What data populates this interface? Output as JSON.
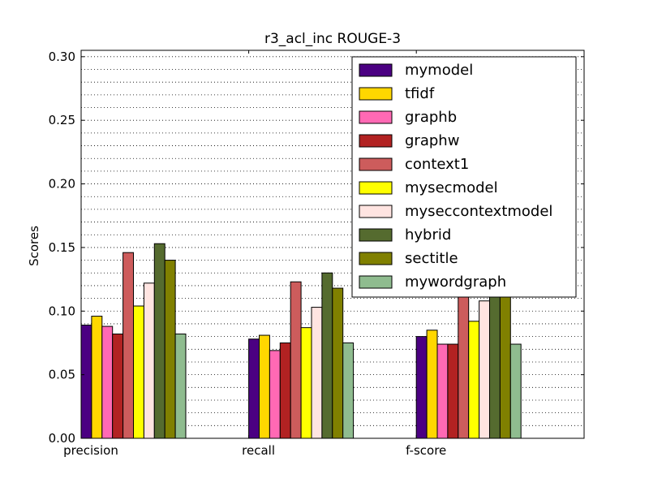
{
  "chart_data": {
    "type": "bar",
    "title": "r3_acl_inc ROUGE-3",
    "xlabel": "",
    "ylabel": "Scores",
    "ylim": [
      0,
      0.305
    ],
    "yticks": [
      "0.00",
      "0.05",
      "0.10",
      "0.15",
      "0.20",
      "0.25",
      "0.30"
    ],
    "ytick_values": [
      0,
      0.05,
      0.1,
      0.15,
      0.2,
      0.25,
      0.3
    ],
    "minor_grid_step": 0.01,
    "grid": true,
    "legend_position": "top-right",
    "categories": [
      "precision",
      "recall",
      "f-score"
    ],
    "series": [
      {
        "name": "mymodel",
        "color": "#4b0082",
        "values": [
          0.089,
          0.078,
          0.08
        ]
      },
      {
        "name": "tfidf",
        "color": "#ffd700",
        "values": [
          0.096,
          0.081,
          0.085
        ]
      },
      {
        "name": "graphb",
        "color": "#ff69b4",
        "values": [
          0.088,
          0.069,
          0.074
        ]
      },
      {
        "name": "graphw",
        "color": "#b22222",
        "values": [
          0.082,
          0.075,
          0.074
        ]
      },
      {
        "name": "context1",
        "color": "#cd5c5c",
        "values": [
          0.146,
          0.123,
          0.126
        ]
      },
      {
        "name": "mysecmodel",
        "color": "#ffff00",
        "values": [
          0.104,
          0.087,
          0.092
        ]
      },
      {
        "name": "myseccontextmodel",
        "color": "#ffe4e1",
        "values": [
          0.122,
          0.103,
          0.108
        ]
      },
      {
        "name": "hybrid",
        "color": "#556b2f",
        "values": [
          0.153,
          0.13,
          0.138
        ]
      },
      {
        "name": "sectitle",
        "color": "#808000",
        "values": [
          0.14,
          0.118,
          0.126
        ]
      },
      {
        "name": "mywordgraph",
        "color": "#8fbc8f",
        "values": [
          0.082,
          0.075,
          0.074
        ]
      }
    ]
  }
}
